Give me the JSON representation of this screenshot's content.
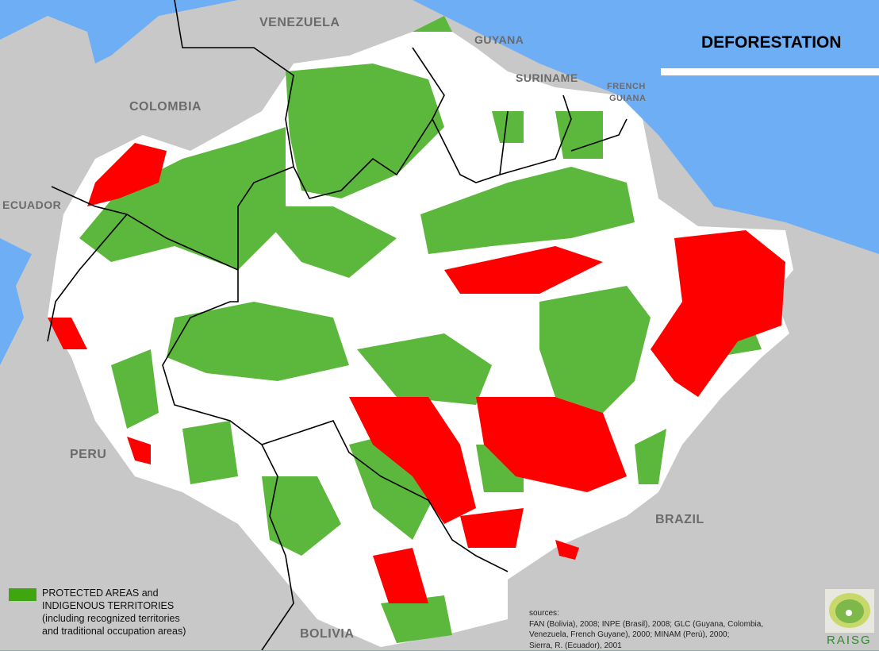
{
  "title": "DEFORESTATION",
  "countries": {
    "venezuela": "VENEZUELA",
    "guyana": "GUYANA",
    "suriname": "SURINAME",
    "french_guiana_1": "FRENCH",
    "french_guiana_2": "GUIANA",
    "colombia": "COLOMBIA",
    "ecuador": "ECUADOR",
    "peru": "PERU",
    "brazil": "BRAZIL",
    "bolivia": "BOLIVIA"
  },
  "legend": {
    "color": "#3fa60f",
    "line1": "PROTECTED AREAS and",
    "line2": "INDIGENOUS TERRITORIES",
    "line3": "(including recognized territories",
    "line4": "and traditional occupation areas)"
  },
  "sources": {
    "heading": "sources:",
    "line1": "FAN (Bolivia), 2008; INPE (Brasil), 2008; GLC (Guyana, Colombia,",
    "line2": "Venezuela, French Guyane), 2000; MINAM (Perú), 2000;",
    "line3": "Sierra, R. (Ecuador), 2001"
  },
  "logo": {
    "text": "RAISG"
  },
  "colors": {
    "ocean": "#6eaef5",
    "land": "#c8c8c8",
    "amazon": "#ffffff",
    "protected": "#5cb83c",
    "deforestation": "#ff0000"
  }
}
